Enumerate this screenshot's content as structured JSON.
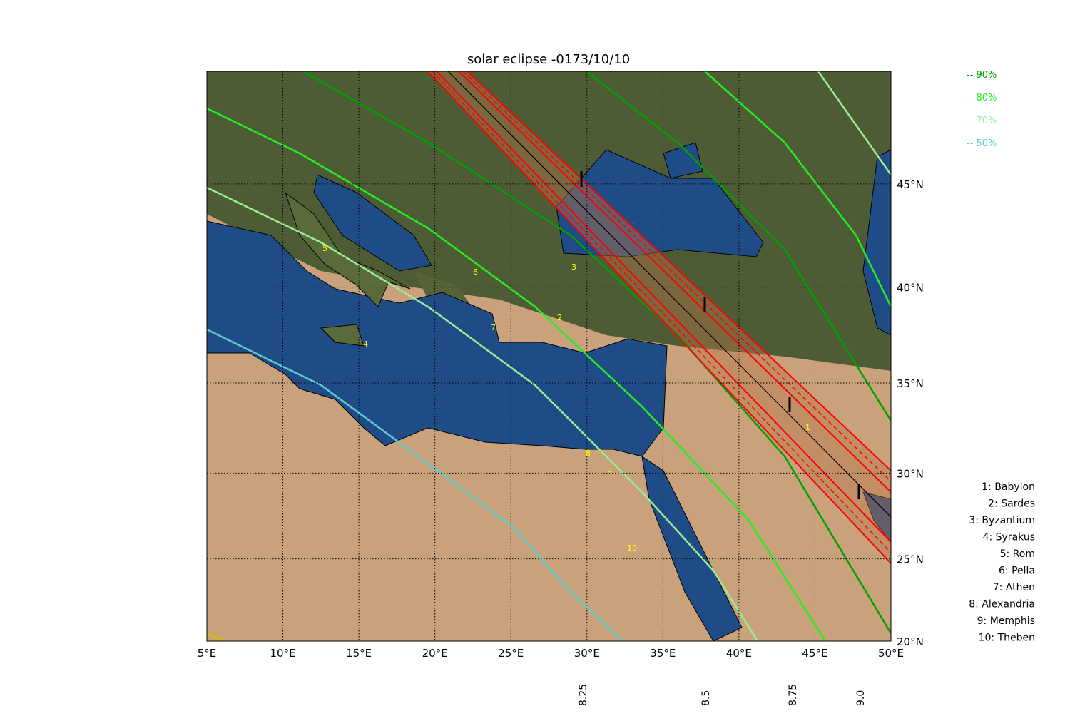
{
  "title": "solar eclipse -0173/10/10",
  "map": {
    "xlim": [
      5,
      50
    ],
    "ylim": [
      20,
      50
    ],
    "grid": true,
    "xticks": [
      {
        "value": 5,
        "label": "5°E"
      },
      {
        "value": 10,
        "label": "10°E"
      },
      {
        "value": 15,
        "label": "15°E"
      },
      {
        "value": 20,
        "label": "20°E"
      },
      {
        "value": 25,
        "label": "25°E"
      },
      {
        "value": 30,
        "label": "30°E"
      },
      {
        "value": 35,
        "label": "35°E"
      },
      {
        "value": 40,
        "label": "40°E"
      },
      {
        "value": 45,
        "label": "45°E"
      },
      {
        "value": 50,
        "label": "50°E"
      }
    ],
    "yticks": [
      {
        "value": 20,
        "label": "20°N"
      },
      {
        "value": 25,
        "label": "25°N"
      },
      {
        "value": 30,
        "label": "30°N"
      },
      {
        "value": 35,
        "label": "35°N"
      },
      {
        "value": 40,
        "label": "40°N"
      },
      {
        "value": 45,
        "label": "45°N"
      }
    ]
  },
  "legend": [
    {
      "label": "-- 90%",
      "color": "#00a000"
    },
    {
      "label": "-- 80%",
      "color": "#22ee22"
    },
    {
      "label": "-- 70%",
      "color": "#98ee98"
    },
    {
      "label": "-- 50%",
      "color": "#5ccccc"
    }
  ],
  "time_labels": [
    "8.25",
    "8.5",
    "8.75",
    "9.0"
  ],
  "city_markers": [
    "1",
    "2",
    "3",
    "4",
    "5",
    "6",
    "7",
    "8",
    "9",
    "10"
  ],
  "city_list": [
    "1: Babylon",
    "2: Sardes",
    "3: Byzantium",
    "4: Syrakus",
    "5: Rom",
    "6: Pella",
    "7: Athen",
    "8: Alexandria",
    "9: Memphis",
    "10: Theben"
  ]
}
